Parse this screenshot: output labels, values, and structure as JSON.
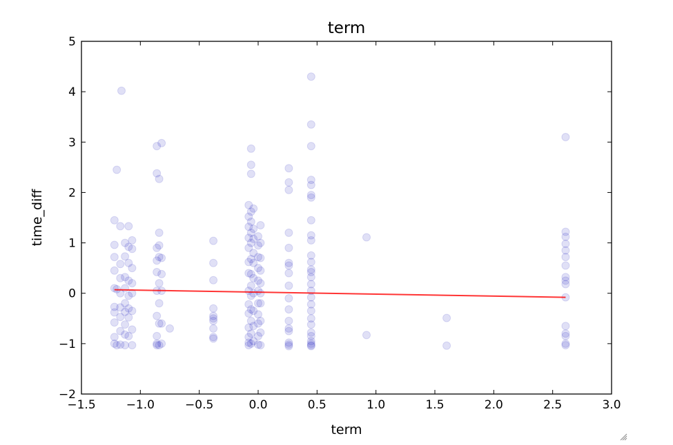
{
  "chart_data": {
    "type": "scatter",
    "title": "term",
    "xlabel": "term",
    "ylabel": "time_diff",
    "xlim": [
      -1.5,
      3.0
    ],
    "ylim": [
      -2,
      5
    ],
    "xticks": [
      -1.5,
      -1.0,
      -0.5,
      0.0,
      0.5,
      1.0,
      1.5,
      2.0,
      2.5,
      3.0
    ],
    "xtick_labels": [
      "−1.5",
      "−1.0",
      "−0.5",
      "0.0",
      "0.5",
      "1.0",
      "1.5",
      "2.0",
      "2.5",
      "3.0"
    ],
    "yticks": [
      -2,
      -1,
      0,
      1,
      2,
      3,
      4,
      5
    ],
    "ytick_labels": [
      "−2",
      "−1",
      "0",
      "1",
      "2",
      "3",
      "4",
      "5"
    ],
    "grid": false,
    "legend": "none",
    "colors": {
      "points": "#0000b4",
      "points_opacity": 0.12,
      "fit_line": "#ff0000"
    },
    "points": [
      [
        -1.22,
        -1.0
      ],
      [
        -1.22,
        -0.87
      ],
      [
        -1.22,
        -0.58
      ],
      [
        -1.22,
        -0.38
      ],
      [
        -1.22,
        -0.27
      ],
      [
        -1.22,
        0.1
      ],
      [
        -1.22,
        0.45
      ],
      [
        -1.22,
        0.72
      ],
      [
        -1.22,
        0.96
      ],
      [
        -1.22,
        1.45
      ],
      [
        -1.2,
        2.45
      ],
      [
        -1.2,
        -1.03
      ],
      [
        -1.2,
        0.08
      ],
      [
        -1.17,
        -1.02
      ],
      [
        -1.17,
        -0.75
      ],
      [
        -1.17,
        -0.47
      ],
      [
        -1.17,
        -0.28
      ],
      [
        -1.17,
        0.0
      ],
      [
        -1.17,
        0.3
      ],
      [
        -1.17,
        0.58
      ],
      [
        -1.17,
        1.33
      ],
      [
        -1.16,
        4.02
      ],
      [
        -1.13,
        -1.03
      ],
      [
        -1.13,
        -0.82
      ],
      [
        -1.13,
        -0.62
      ],
      [
        -1.13,
        -0.37
      ],
      [
        -1.13,
        -0.2
      ],
      [
        -1.13,
        0.1
      ],
      [
        -1.13,
        0.32
      ],
      [
        -1.13,
        0.73
      ],
      [
        -1.13,
        1.0
      ],
      [
        -1.1,
        -0.85
      ],
      [
        -1.1,
        -0.48
      ],
      [
        -1.1,
        -0.3
      ],
      [
        -1.1,
        -0.05
      ],
      [
        -1.1,
        0.25
      ],
      [
        -1.1,
        0.6
      ],
      [
        -1.1,
        0.92
      ],
      [
        -1.1,
        1.33
      ],
      [
        -1.07,
        -1.03
      ],
      [
        -1.07,
        -0.72
      ],
      [
        -1.07,
        -0.35
      ],
      [
        -1.07,
        0.0
      ],
      [
        -1.07,
        0.2
      ],
      [
        -1.07,
        0.5
      ],
      [
        -1.07,
        0.88
      ],
      [
        -1.07,
        1.05
      ],
      [
        -0.86,
        -1.03
      ],
      [
        -0.86,
        -1.0
      ],
      [
        -0.86,
        -0.85
      ],
      [
        -0.86,
        -0.45
      ],
      [
        -0.86,
        0.05
      ],
      [
        -0.86,
        0.42
      ],
      [
        -0.86,
        0.65
      ],
      [
        -0.86,
        0.9
      ],
      [
        -0.86,
        2.38
      ],
      [
        -0.86,
        2.92
      ],
      [
        -0.84,
        -1.03
      ],
      [
        -0.84,
        -0.6
      ],
      [
        -0.84,
        -0.2
      ],
      [
        -0.84,
        0.2
      ],
      [
        -0.84,
        0.72
      ],
      [
        -0.84,
        0.95
      ],
      [
        -0.84,
        1.2
      ],
      [
        -0.84,
        2.27
      ],
      [
        -0.82,
        -1.0
      ],
      [
        -0.82,
        -0.6
      ],
      [
        -0.82,
        0.05
      ],
      [
        -0.82,
        0.38
      ],
      [
        -0.82,
        0.7
      ],
      [
        -0.82,
        2.98
      ],
      [
        -0.75,
        -0.7
      ],
      [
        -0.38,
        -0.9
      ],
      [
        -0.38,
        -0.87
      ],
      [
        -0.38,
        -0.7
      ],
      [
        -0.38,
        -0.55
      ],
      [
        -0.38,
        -0.5
      ],
      [
        -0.38,
        -0.45
      ],
      [
        -0.38,
        -0.3
      ],
      [
        -0.38,
        0.26
      ],
      [
        -0.38,
        0.6
      ],
      [
        -0.38,
        1.04
      ],
      [
        -0.08,
        -1.03
      ],
      [
        -0.08,
        -0.98
      ],
      [
        -0.08,
        -0.87
      ],
      [
        -0.08,
        -0.68
      ],
      [
        -0.08,
        -0.4
      ],
      [
        -0.08,
        -0.22
      ],
      [
        -0.08,
        0.05
      ],
      [
        -0.08,
        0.4
      ],
      [
        -0.08,
        0.62
      ],
      [
        -0.08,
        0.9
      ],
      [
        -0.08,
        1.1
      ],
      [
        -0.08,
        1.32
      ],
      [
        -0.08,
        1.52
      ],
      [
        -0.08,
        1.75
      ],
      [
        -0.06,
        -1.0
      ],
      [
        -0.06,
        -0.8
      ],
      [
        -0.06,
        -0.55
      ],
      [
        -0.06,
        -0.32
      ],
      [
        -0.06,
        -0.05
      ],
      [
        -0.06,
        0.15
      ],
      [
        -0.06,
        0.38
      ],
      [
        -0.06,
        0.68
      ],
      [
        -0.06,
        1.0
      ],
      [
        -0.06,
        1.2
      ],
      [
        -0.06,
        1.42
      ],
      [
        -0.06,
        1.62
      ],
      [
        -0.06,
        2.37
      ],
      [
        -0.06,
        2.55
      ],
      [
        -0.06,
        2.87
      ],
      [
        -0.04,
        -0.95
      ],
      [
        -0.04,
        -0.65
      ],
      [
        -0.04,
        -0.35
      ],
      [
        -0.04,
        0.0
      ],
      [
        -0.04,
        0.3
      ],
      [
        -0.04,
        0.6
      ],
      [
        -0.04,
        0.8
      ],
      [
        -0.04,
        1.08
      ],
      [
        -0.04,
        1.28
      ],
      [
        -0.04,
        1.68
      ],
      [
        0.0,
        -1.02
      ],
      [
        0.0,
        -0.85
      ],
      [
        0.0,
        -0.6
      ],
      [
        0.0,
        -0.42
      ],
      [
        0.0,
        -0.2
      ],
      [
        0.0,
        0.05
      ],
      [
        0.0,
        0.25
      ],
      [
        0.0,
        0.5
      ],
      [
        0.0,
        0.72
      ],
      [
        0.0,
        0.95
      ],
      [
        0.0,
        1.13
      ],
      [
        0.02,
        -1.03
      ],
      [
        0.02,
        -0.78
      ],
      [
        0.02,
        -0.55
      ],
      [
        0.02,
        -0.2
      ],
      [
        0.02,
        0.0
      ],
      [
        0.02,
        0.2
      ],
      [
        0.02,
        0.45
      ],
      [
        0.02,
        0.7
      ],
      [
        0.02,
        1.0
      ],
      [
        0.02,
        1.35
      ],
      [
        0.26,
        -1.05
      ],
      [
        0.26,
        -1.02
      ],
      [
        0.26,
        -0.98
      ],
      [
        0.26,
        -0.75
      ],
      [
        0.26,
        -0.7
      ],
      [
        0.26,
        -0.55
      ],
      [
        0.26,
        -0.32
      ],
      [
        0.26,
        -0.1
      ],
      [
        0.26,
        0.15
      ],
      [
        0.26,
        0.4
      ],
      [
        0.26,
        0.55
      ],
      [
        0.26,
        0.6
      ],
      [
        0.26,
        0.9
      ],
      [
        0.26,
        1.2
      ],
      [
        0.26,
        2.05
      ],
      [
        0.26,
        2.2
      ],
      [
        0.26,
        2.48
      ],
      [
        0.45,
        -1.05
      ],
      [
        0.45,
        -1.03
      ],
      [
        0.45,
        -1.0
      ],
      [
        0.45,
        -0.95
      ],
      [
        0.45,
        -0.85
      ],
      [
        0.45,
        -0.78
      ],
      [
        0.45,
        -0.62
      ],
      [
        0.45,
        -0.5
      ],
      [
        0.45,
        -0.35
      ],
      [
        0.45,
        -0.22
      ],
      [
        0.45,
        -0.08
      ],
      [
        0.45,
        0.05
      ],
      [
        0.45,
        0.18
      ],
      [
        0.45,
        0.32
      ],
      [
        0.45,
        0.42
      ],
      [
        0.45,
        0.47
      ],
      [
        0.45,
        0.62
      ],
      [
        0.45,
        0.75
      ],
      [
        0.45,
        1.05
      ],
      [
        0.45,
        1.15
      ],
      [
        0.45,
        1.45
      ],
      [
        0.45,
        1.9
      ],
      [
        0.45,
        1.95
      ],
      [
        0.45,
        2.15
      ],
      [
        0.45,
        2.25
      ],
      [
        0.45,
        2.92
      ],
      [
        0.45,
        3.35
      ],
      [
        0.45,
        4.3
      ],
      [
        0.92,
        -0.83
      ],
      [
        0.92,
        1.11
      ],
      [
        1.6,
        -1.04
      ],
      [
        1.6,
        -0.49
      ],
      [
        2.61,
        -1.03
      ],
      [
        2.61,
        -1.0
      ],
      [
        2.61,
        -0.85
      ],
      [
        2.61,
        -0.8
      ],
      [
        2.61,
        -0.65
      ],
      [
        2.61,
        -0.08
      ],
      [
        2.61,
        0.18
      ],
      [
        2.61,
        0.25
      ],
      [
        2.61,
        0.32
      ],
      [
        2.61,
        0.55
      ],
      [
        2.61,
        0.72
      ],
      [
        2.61,
        0.85
      ],
      [
        2.61,
        0.98
      ],
      [
        2.61,
        1.12
      ],
      [
        2.61,
        1.22
      ],
      [
        2.61,
        3.1
      ]
    ],
    "fit_line": {
      "x": [
        -1.22,
        2.61
      ],
      "y": [
        0.07,
        -0.08
      ]
    }
  }
}
